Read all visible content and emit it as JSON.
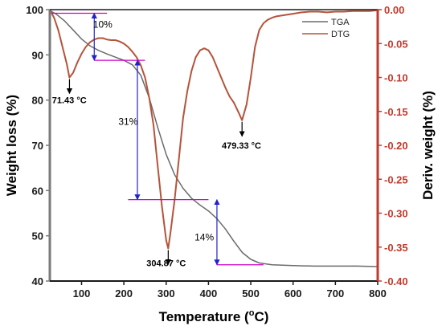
{
  "chart_data": {
    "type": "line",
    "xlabel_prefix": "Temperature (",
    "xlabel_unit": "o",
    "xlabel_suffix": "C)",
    "ylabel_left": "Weight loss (%)",
    "ylabel_right": "Deriv. weight (%)",
    "xlim": [
      25,
      800
    ],
    "ylim_left": [
      40,
      100
    ],
    "ylim_right": [
      -0.4,
      0
    ],
    "x_ticks": [
      100,
      200,
      300,
      400,
      500,
      600,
      700,
      800
    ],
    "y_left_ticks": [
      40,
      50,
      60,
      70,
      80,
      90,
      100
    ],
    "y_right_ticks": [
      "0.00",
      "-0.05",
      "-0.10",
      "-0.15",
      "-0.20",
      "-0.25",
      "-0.30",
      "-0.35",
      "-0.40"
    ],
    "legend_position": "top-right",
    "colors": {
      "tga": "#6b6b6b",
      "dtg": "#b5533a",
      "guides": "#cc00cc",
      "arrows": "#2222cc",
      "right_axis": "#c0392b"
    },
    "series": [
      {
        "name": "TGA",
        "axis": "left",
        "x": [
          25,
          40,
          60,
          80,
          100,
          120,
          140,
          160,
          180,
          200,
          220,
          240,
          260,
          280,
          300,
          320,
          340,
          360,
          380,
          400,
          420,
          440,
          460,
          480,
          500,
          520,
          550,
          600,
          650,
          700,
          750,
          800
        ],
        "y": [
          99.8,
          99.0,
          97.5,
          95.5,
          93.5,
          92.0,
          91.0,
          90.2,
          89.5,
          88.8,
          87.8,
          85.5,
          80.5,
          74.0,
          68.0,
          63.5,
          60.5,
          58.3,
          56.8,
          55.5,
          53.8,
          51.5,
          48.8,
          46.3,
          44.8,
          44.0,
          43.6,
          43.4,
          43.3,
          43.3,
          43.3,
          43.2
        ]
      },
      {
        "name": "DTG",
        "axis": "right",
        "x": [
          25,
          35,
          45,
          55,
          65,
          71.43,
          80,
          90,
          100,
          110,
          120,
          130,
          140,
          150,
          160,
          170,
          180,
          190,
          200,
          210,
          220,
          230,
          240,
          250,
          260,
          270,
          280,
          290,
          300,
          304.87,
          310,
          320,
          330,
          340,
          350,
          360,
          370,
          380,
          390,
          400,
          410,
          420,
          430,
          440,
          450,
          460,
          470,
          479.33,
          490,
          500,
          510,
          520,
          530,
          540,
          550,
          560,
          580,
          600,
          620,
          640,
          660,
          680,
          700,
          720,
          740,
          760,
          780,
          800
        ],
        "y": [
          0.0,
          -0.012,
          -0.03,
          -0.055,
          -0.08,
          -0.1,
          -0.093,
          -0.078,
          -0.065,
          -0.055,
          -0.048,
          -0.044,
          -0.042,
          -0.042,
          -0.044,
          -0.045,
          -0.045,
          -0.047,
          -0.05,
          -0.055,
          -0.062,
          -0.07,
          -0.082,
          -0.1,
          -0.13,
          -0.17,
          -0.23,
          -0.29,
          -0.34,
          -0.352,
          -0.33,
          -0.28,
          -0.22,
          -0.16,
          -0.12,
          -0.09,
          -0.07,
          -0.06,
          -0.057,
          -0.06,
          -0.07,
          -0.085,
          -0.1,
          -0.115,
          -0.128,
          -0.137,
          -0.15,
          -0.163,
          -0.14,
          -0.1,
          -0.055,
          -0.03,
          -0.02,
          -0.015,
          -0.012,
          -0.01,
          -0.008,
          -0.006,
          -0.004,
          -0.003,
          -0.003,
          -0.004,
          -0.003,
          -0.003,
          -0.002,
          -0.002,
          -0.002,
          -0.001
        ]
      }
    ],
    "peak_annotations": [
      {
        "label": "71.43 °C",
        "x": 71.43,
        "y": -0.1,
        "text_x": 71,
        "text_y": -0.138
      },
      {
        "label": "304.87 °C",
        "x": 304.87,
        "y": -0.352,
        "text_x": 300,
        "text_y": -0.378
      },
      {
        "label": "479.33 °C",
        "x": 479.33,
        "y": -0.163,
        "text_x": 478,
        "text_y": -0.205
      }
    ],
    "mass_loss_steps": [
      {
        "label": "10%",
        "arrow_x": 130,
        "y_top": 99.2,
        "y_bottom": 88.8,
        "line_top": [
          30,
          160
        ],
        "line_bottom": [
          130,
          250
        ],
        "label_x": 150,
        "label_y": 96
      },
      {
        "label": "31%",
        "arrow_x": 232,
        "y_top": 88.8,
        "y_bottom": 58.0,
        "line_top": null,
        "line_bottom": [
          210,
          400
        ],
        "label_x": 210,
        "label_y": 74.5
      },
      {
        "label": "14%",
        "arrow_x": 420,
        "y_top": 58.0,
        "y_bottom": 43.6,
        "line_top": null,
        "line_bottom": [
          420,
          530
        ],
        "label_x": 390,
        "label_y": 49
      }
    ]
  }
}
